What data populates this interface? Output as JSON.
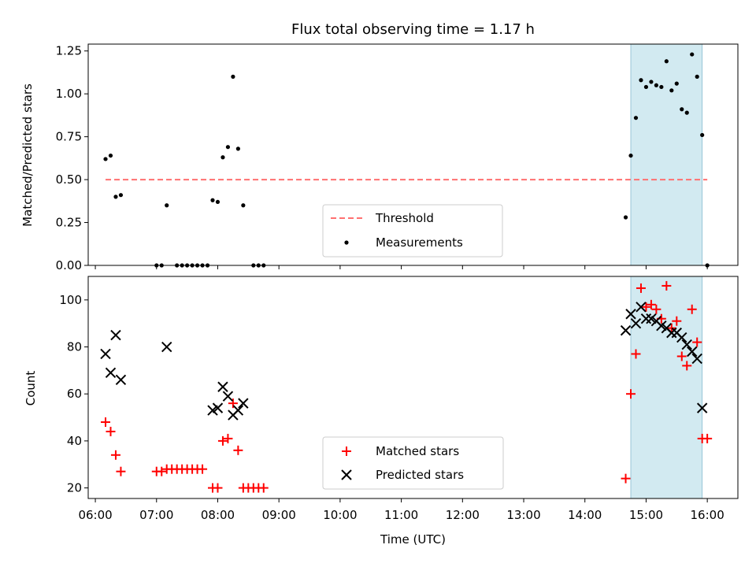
{
  "chart_data": [
    {
      "type": "scatter",
      "title": "Flux total observing time = 1.17 h",
      "xlabel": "",
      "ylabel": "Matched/Predicted stars",
      "ylim": [
        0,
        1.29
      ],
      "xlim": [
        "05:53",
        "16:30"
      ],
      "yticks": [
        "0.00",
        "0.25",
        "0.50",
        "0.75",
        "1.00",
        "1.25"
      ],
      "highlight": {
        "x": [
          "14:45",
          "15:55"
        ],
        "color": "#add8e6"
      },
      "threshold": {
        "name": "Threshold",
        "y": 0.5,
        "x": [
          "06:10",
          "16:00"
        ],
        "color": "#ff7070"
      },
      "series": [
        {
          "name": "Measurements",
          "color": "#000000",
          "points": [
            [
              "06:10",
              0.62
            ],
            [
              "06:15",
              0.64
            ],
            [
              "06:20",
              0.4
            ],
            [
              "06:25",
              0.41
            ],
            [
              "07:00",
              0.0
            ],
            [
              "07:05",
              0.0
            ],
            [
              "07:10",
              0.35
            ],
            [
              "07:20",
              0.0
            ],
            [
              "07:25",
              0.0
            ],
            [
              "07:30",
              0.0
            ],
            [
              "07:35",
              0.0
            ],
            [
              "07:40",
              0.0
            ],
            [
              "07:45",
              0.0
            ],
            [
              "07:50",
              0.0
            ],
            [
              "07:55",
              0.38
            ],
            [
              "08:00",
              0.37
            ],
            [
              "08:05",
              0.63
            ],
            [
              "08:10",
              0.69
            ],
            [
              "08:15",
              1.1
            ],
            [
              "08:20",
              0.68
            ],
            [
              "08:25",
              0.35
            ],
            [
              "08:35",
              0.0
            ],
            [
              "08:40",
              0.0
            ],
            [
              "08:45",
              0.0
            ],
            [
              "14:40",
              0.28
            ],
            [
              "14:45",
              0.64
            ],
            [
              "14:50",
              0.86
            ],
            [
              "14:55",
              1.08
            ],
            [
              "15:00",
              1.04
            ],
            [
              "15:05",
              1.07
            ],
            [
              "15:10",
              1.05
            ],
            [
              "15:15",
              1.04
            ],
            [
              "15:20",
              1.19
            ],
            [
              "15:25",
              1.02
            ],
            [
              "15:30",
              1.06
            ],
            [
              "15:35",
              0.91
            ],
            [
              "15:40",
              0.89
            ],
            [
              "15:45",
              1.23
            ],
            [
              "15:50",
              1.1
            ],
            [
              "15:55",
              0.76
            ],
            [
              "16:00",
              0.0
            ]
          ]
        }
      ],
      "legend": {
        "position": "lower center",
        "entries": [
          "Threshold",
          "Measurements"
        ]
      }
    },
    {
      "type": "scatter",
      "title": "",
      "xlabel": "Time (UTC)",
      "ylabel": "Count",
      "ylim": [
        15.5,
        110
      ],
      "xlim": [
        "05:53",
        "16:30"
      ],
      "xticks": [
        "06:00",
        "07:00",
        "08:00",
        "09:00",
        "10:00",
        "11:00",
        "12:00",
        "13:00",
        "14:00",
        "15:00",
        "16:00"
      ],
      "yticks": [
        "20",
        "40",
        "60",
        "80",
        "100"
      ],
      "highlight": {
        "x": [
          "14:45",
          "15:55"
        ],
        "color": "#add8e6"
      },
      "series": [
        {
          "name": "Matched stars",
          "color": "#ff0000",
          "marker": "+",
          "points": [
            [
              "06:10",
              48
            ],
            [
              "06:15",
              44
            ],
            [
              "06:20",
              34
            ],
            [
              "06:25",
              27
            ],
            [
              "07:00",
              27
            ],
            [
              "07:05",
              27
            ],
            [
              "07:10",
              28
            ],
            [
              "07:15",
              28
            ],
            [
              "07:20",
              28
            ],
            [
              "07:25",
              28
            ],
            [
              "07:30",
              28
            ],
            [
              "07:35",
              28
            ],
            [
              "07:40",
              28
            ],
            [
              "07:45",
              28
            ],
            [
              "07:55",
              20
            ],
            [
              "08:00",
              20
            ],
            [
              "08:05",
              40
            ],
            [
              "08:10",
              41
            ],
            [
              "08:15",
              56
            ],
            [
              "08:20",
              36
            ],
            [
              "08:25",
              20
            ],
            [
              "08:30",
              20
            ],
            [
              "08:35",
              20
            ],
            [
              "08:40",
              20
            ],
            [
              "08:45",
              20
            ],
            [
              "14:40",
              24
            ],
            [
              "14:45",
              60
            ],
            [
              "14:50",
              77
            ],
            [
              "14:55",
              105
            ],
            [
              "15:00",
              97
            ],
            [
              "15:05",
              98
            ],
            [
              "15:10",
              96
            ],
            [
              "15:15",
              92
            ],
            [
              "15:20",
              106
            ],
            [
              "15:25",
              88
            ],
            [
              "15:30",
              91
            ],
            [
              "15:35",
              76
            ],
            [
              "15:40",
              72
            ],
            [
              "15:45",
              96
            ],
            [
              "15:50",
              82
            ],
            [
              "15:55",
              41
            ],
            [
              "16:00",
              41
            ]
          ]
        },
        {
          "name": "Predicted stars",
          "color": "#000000",
          "marker": "x",
          "points": [
            [
              "06:10",
              77
            ],
            [
              "06:15",
              69
            ],
            [
              "06:20",
              85
            ],
            [
              "06:25",
              66
            ],
            [
              "07:10",
              80
            ],
            [
              "07:55",
              53
            ],
            [
              "08:00",
              54
            ],
            [
              "08:05",
              63
            ],
            [
              "08:10",
              59
            ],
            [
              "08:15",
              51
            ],
            [
              "08:20",
              53
            ],
            [
              "08:25",
              56
            ],
            [
              "14:40",
              87
            ],
            [
              "14:45",
              94
            ],
            [
              "14:50",
              90
            ],
            [
              "14:55",
              97
            ],
            [
              "15:00",
              92
            ],
            [
              "15:05",
              92
            ],
            [
              "15:10",
              91
            ],
            [
              "15:15",
              89
            ],
            [
              "15:20",
              88
            ],
            [
              "15:25",
              86
            ],
            [
              "15:30",
              86
            ],
            [
              "15:35",
              84
            ],
            [
              "15:40",
              81
            ],
            [
              "15:45",
              78
            ],
            [
              "15:50",
              75
            ],
            [
              "15:55",
              54
            ]
          ]
        }
      ],
      "legend": {
        "position": "lower center",
        "entries": [
          "Matched stars",
          "Predicted stars"
        ]
      }
    }
  ]
}
